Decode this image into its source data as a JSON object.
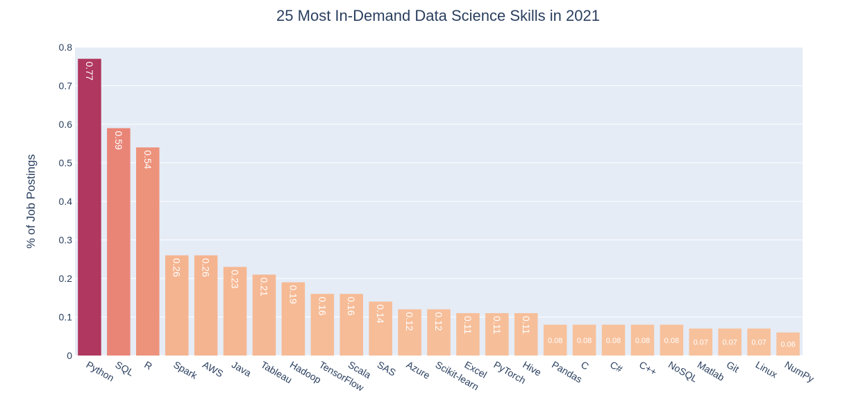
{
  "chart_data": {
    "type": "bar",
    "title": "25 Most In-Demand Data Science Skills in 2021",
    "xlabel": "",
    "ylabel": "% of Job Postings",
    "ylim": [
      0,
      0.8
    ],
    "yticks": [
      "0",
      "0.1",
      "0.2",
      "0.3",
      "0.4",
      "0.5",
      "0.6",
      "0.7",
      "0.8"
    ],
    "categories": [
      "Python",
      "SQL",
      "R",
      "Spark",
      "AWS",
      "Java",
      "Tableau",
      "Hadoop",
      "TensorFlow",
      "Scala",
      "SAS",
      "Azure",
      "Scikit-learn",
      "Excel",
      "PyTorch",
      "Hive",
      "Pandas",
      "C",
      "C#",
      "C++",
      "NoSQL",
      "Matlab",
      "Git",
      "Linux",
      "NumPy"
    ],
    "values": [
      0.77,
      0.59,
      0.54,
      0.26,
      0.26,
      0.23,
      0.21,
      0.19,
      0.16,
      0.16,
      0.14,
      0.12,
      0.12,
      0.11,
      0.11,
      0.11,
      0.08,
      0.08,
      0.08,
      0.08,
      0.08,
      0.07,
      0.07,
      0.07,
      0.06
    ],
    "grid": true,
    "legend": "none",
    "colorscale": [
      "#b0375f",
      "#d45a66",
      "#e06a6e",
      "#f2a380",
      "#f7c29d"
    ],
    "plot_background": "#e5ecf6"
  }
}
